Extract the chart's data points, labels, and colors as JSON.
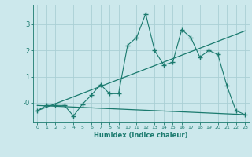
{
  "xlabel": "Humidex (Indice chaleur)",
  "background_color": "#cce8ec",
  "grid_color": "#aacfd5",
  "line_color": "#1a7a6e",
  "series1_x": [
    0,
    1,
    2,
    3,
    4,
    5,
    6,
    7,
    8,
    9,
    10,
    11,
    12,
    13,
    14,
    15,
    16,
    17,
    18,
    19,
    20,
    21,
    22,
    23
  ],
  "series1_y": [
    -0.3,
    -0.1,
    -0.1,
    -0.1,
    -0.5,
    -0.05,
    0.3,
    0.7,
    0.35,
    0.35,
    2.2,
    2.5,
    3.4,
    2.0,
    1.45,
    1.55,
    2.8,
    2.5,
    1.75,
    2.0,
    1.85,
    0.65,
    -0.3,
    -0.45
  ],
  "series2_x": [
    0,
    23
  ],
  "series2_y": [
    -0.3,
    2.75
  ],
  "series3_x": [
    0,
    23
  ],
  "series3_y": [
    -0.1,
    -0.45
  ],
  "xlim": [
    -0.5,
    23.5
  ],
  "ylim": [
    -0.75,
    3.75
  ],
  "yticks": [
    0,
    1,
    2,
    3
  ],
  "ytick_labels": [
    "-0",
    "1",
    "2",
    "3"
  ],
  "xticks": [
    0,
    1,
    2,
    3,
    4,
    5,
    6,
    7,
    8,
    9,
    10,
    11,
    12,
    13,
    14,
    15,
    16,
    17,
    18,
    19,
    20,
    21,
    22,
    23
  ]
}
